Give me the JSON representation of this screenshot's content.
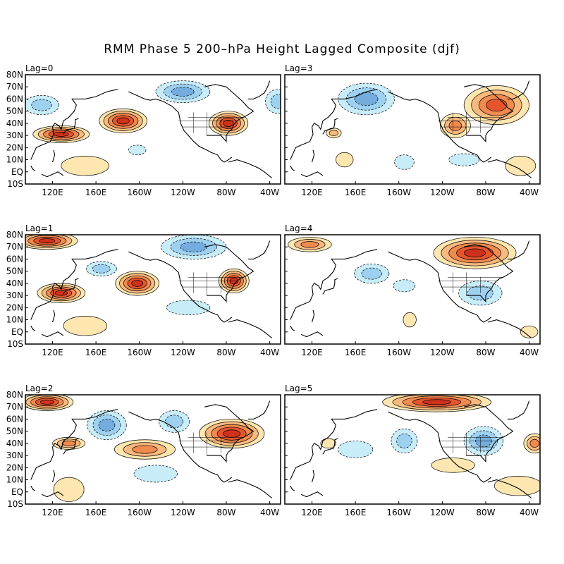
{
  "title": "RMM Phase 5 200–hPa Height Lagged Composite (djf)",
  "lat_labels": [
    "80N",
    "70N",
    "60N",
    "50N",
    "40N",
    "30N",
    "20N",
    "10N",
    "EQ",
    "10S"
  ],
  "lon_labels": [
    "120E",
    "160E",
    "160W",
    "120W",
    "80W",
    "40W"
  ],
  "colors": {
    "pos": [
      "#fde6b0",
      "#f9b97e",
      "#f08a4f",
      "#e4552e",
      "#d0311c"
    ],
    "neg": [
      "#c8ecf8",
      "#9ed1f0",
      "#74acde",
      "#4f89cb"
    ],
    "land": "#000000"
  },
  "panels": [
    {
      "label": "Lag=0",
      "blobs": [
        {
          "lon": 128,
          "lat": 31,
          "rx": 26,
          "ry": 7,
          "v": 5
        },
        {
          "lon": 185,
          "lat": 42,
          "rx": 22,
          "ry": 10,
          "v": 5
        },
        {
          "lon": 282,
          "lat": 40,
          "rx": 18,
          "ry": 10,
          "v": 5
        },
        {
          "lon": 110,
          "lat": 55,
          "rx": 16,
          "ry": 8,
          "v": -2
        },
        {
          "lon": 240,
          "lat": 66,
          "rx": 25,
          "ry": 9,
          "v": -3
        },
        {
          "lon": 198,
          "lat": 18,
          "rx": 8,
          "ry": 4,
          "v": -1
        },
        {
          "lon": 150,
          "lat": 5,
          "rx": 22,
          "ry": 8,
          "v": 1
        },
        {
          "lon": 328,
          "lat": 58,
          "rx": 12,
          "ry": 10,
          "v": -2
        }
      ]
    },
    {
      "label": "Lag=3",
      "blobs": [
        {
          "lon": 170,
          "lat": 60,
          "rx": 26,
          "ry": 13,
          "v": -3
        },
        {
          "lon": 290,
          "lat": 55,
          "rx": 30,
          "ry": 16,
          "v": 4
        },
        {
          "lon": 252,
          "lat": 38,
          "rx": 14,
          "ry": 10,
          "v": 3
        },
        {
          "lon": 140,
          "lat": 32,
          "rx": 7,
          "ry": 4,
          "v": 2
        },
        {
          "lon": 150,
          "lat": 10,
          "rx": 8,
          "ry": 6,
          "v": 1
        },
        {
          "lon": 205,
          "lat": 8,
          "rx": 9,
          "ry": 6,
          "v": -1
        },
        {
          "lon": 260,
          "lat": 10,
          "rx": 14,
          "ry": 5,
          "v": -1
        },
        {
          "lon": 312,
          "lat": 5,
          "rx": 14,
          "ry": 8,
          "v": 1
        }
      ]
    },
    {
      "label": "Lag=1",
      "blobs": [
        {
          "lon": 115,
          "lat": 75,
          "rx": 28,
          "ry": 7,
          "v": 5
        },
        {
          "lon": 128,
          "lat": 32,
          "rx": 22,
          "ry": 8,
          "v": 5
        },
        {
          "lon": 198,
          "lat": 40,
          "rx": 20,
          "ry": 10,
          "v": 5
        },
        {
          "lon": 287,
          "lat": 42,
          "rx": 14,
          "ry": 10,
          "v": 5
        },
        {
          "lon": 250,
          "lat": 70,
          "rx": 30,
          "ry": 10,
          "v": -3
        },
        {
          "lon": 165,
          "lat": 52,
          "rx": 14,
          "ry": 6,
          "v": -2
        },
        {
          "lon": 245,
          "lat": 20,
          "rx": 20,
          "ry": 6,
          "v": -1
        },
        {
          "lon": 150,
          "lat": 5,
          "rx": 20,
          "ry": 8,
          "v": 1
        }
      ]
    },
    {
      "label": "Lag=4",
      "blobs": [
        {
          "lon": 270,
          "lat": 65,
          "rx": 38,
          "ry": 13,
          "v": 5
        },
        {
          "lon": 118,
          "lat": 72,
          "rx": 20,
          "ry": 6,
          "v": 3
        },
        {
          "lon": 175,
          "lat": 48,
          "rx": 16,
          "ry": 8,
          "v": -2
        },
        {
          "lon": 275,
          "lat": 32,
          "rx": 20,
          "ry": 10,
          "v": -2
        },
        {
          "lon": 205,
          "lat": 38,
          "rx": 10,
          "ry": 5,
          "v": -1
        },
        {
          "lon": 210,
          "lat": 10,
          "rx": 6,
          "ry": 6,
          "v": 1
        },
        {
          "lon": 320,
          "lat": 0,
          "rx": 8,
          "ry": 5,
          "v": 1
        }
      ]
    },
    {
      "label": "Lag=2",
      "blobs": [
        {
          "lon": 115,
          "lat": 74,
          "rx": 24,
          "ry": 7,
          "v": 5
        },
        {
          "lon": 285,
          "lat": 48,
          "rx": 30,
          "ry": 12,
          "v": 5
        },
        {
          "lon": 205,
          "lat": 35,
          "rx": 28,
          "ry": 8,
          "v": 3
        },
        {
          "lon": 135,
          "lat": 40,
          "rx": 15,
          "ry": 5,
          "v": 3
        },
        {
          "lon": 170,
          "lat": 55,
          "rx": 18,
          "ry": 12,
          "v": -3
        },
        {
          "lon": 232,
          "lat": 58,
          "rx": 14,
          "ry": 9,
          "v": -2
        },
        {
          "lon": 215,
          "lat": 15,
          "rx": 20,
          "ry": 7,
          "v": -1
        },
        {
          "lon": 135,
          "lat": 2,
          "rx": 14,
          "ry": 10,
          "v": 1
        }
      ]
    },
    {
      "label": "Lag=5",
      "blobs": [
        {
          "lon": 235,
          "lat": 74,
          "rx": 50,
          "ry": 8,
          "v": 5
        },
        {
          "lon": 278,
          "lat": 42,
          "rx": 18,
          "ry": 12,
          "v": -3
        },
        {
          "lon": 205,
          "lat": 42,
          "rx": 12,
          "ry": 10,
          "v": -2
        },
        {
          "lon": 160,
          "lat": 35,
          "rx": 16,
          "ry": 7,
          "v": -1
        },
        {
          "lon": 135,
          "lat": 40,
          "rx": 7,
          "ry": 4,
          "v": 1
        },
        {
          "lon": 325,
          "lat": 40,
          "rx": 10,
          "ry": 8,
          "v": 3
        },
        {
          "lon": 310,
          "lat": 5,
          "rx": 22,
          "ry": 8,
          "v": 1
        },
        {
          "lon": 250,
          "lat": 22,
          "rx": 20,
          "ry": 6,
          "v": 1
        }
      ]
    }
  ]
}
